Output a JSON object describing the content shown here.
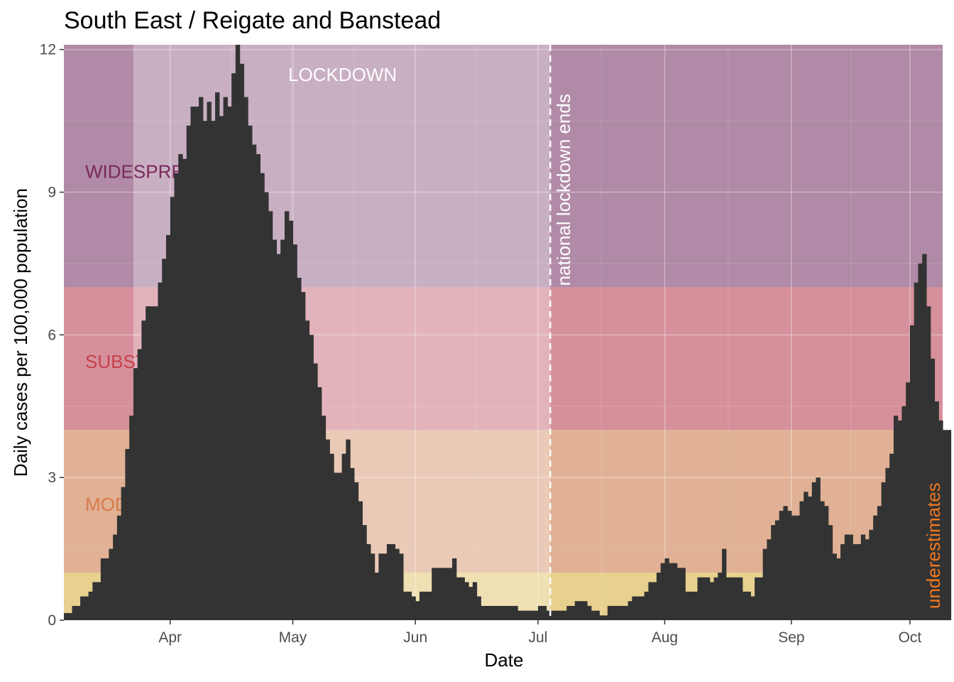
{
  "chart_data": {
    "type": "bar",
    "title": "South East / Reigate and Banstead",
    "xlabel": "Date",
    "ylabel": "Daily cases per 100,000 population",
    "ylim": [
      0,
      12.1
    ],
    "xlim_days": [
      0,
      215
    ],
    "yticks": [
      0,
      3,
      6,
      9,
      12
    ],
    "xticks": [
      {
        "label": "Apr",
        "day": 26
      },
      {
        "label": "May",
        "day": 56
      },
      {
        "label": "Jun",
        "day": 86
      },
      {
        "label": "Jul",
        "day": 116
      },
      {
        "label": "Aug",
        "day": 147
      },
      {
        "label": "Sep",
        "day": 178
      },
      {
        "label": "Oct",
        "day": 207
      }
    ],
    "bands": [
      {
        "label": "WIDESPREAD",
        "ymin": 7,
        "ymax": 12.1,
        "color": "#b08aa6",
        "text_color": "#7a2a5c"
      },
      {
        "label": "SUBSTANTIAL",
        "ymin": 4,
        "ymax": 7,
        "color": "#d6909b",
        "text_color": "#c8404f"
      },
      {
        "label": "MODERATE",
        "ymin": 1,
        "ymax": 4,
        "color": "#e0b194",
        "text_color": "#d97a4a"
      },
      {
        "label": "",
        "ymin": 0,
        "ymax": 1,
        "color": "#e8d18f",
        "text_color": ""
      }
    ],
    "lockdown": {
      "label": "LOCKDOWN",
      "start_day": 17,
      "end_day": 119
    },
    "vline": {
      "label": "national lockdown ends",
      "day": 119
    },
    "underestimates_label": "underestimates",
    "start_day": 0,
    "values": [
      0.15,
      0.15,
      0.3,
      0.3,
      0.5,
      0.5,
      0.6,
      0.8,
      0.8,
      1.3,
      1.3,
      1.5,
      1.8,
      2.2,
      2.8,
      3.6,
      4.3,
      5.3,
      5.7,
      6.3,
      6.6,
      6.6,
      6.6,
      7.1,
      7.6,
      8.1,
      8.9,
      9.4,
      9.8,
      9.7,
      10.4,
      10.8,
      10.8,
      11.0,
      10.5,
      10.9,
      10.5,
      11.1,
      10.6,
      11.0,
      10.8,
      11.5,
      12.1,
      11.7,
      11.0,
      10.4,
      10.0,
      9.8,
      9.4,
      9.0,
      8.6,
      8.0,
      7.7,
      8.0,
      8.6,
      8.4,
      7.9,
      7.2,
      6.9,
      6.3,
      6.0,
      5.4,
      4.9,
      4.3,
      3.8,
      3.5,
      3.1,
      3.1,
      3.5,
      3.8,
      3.2,
      2.9,
      2.5,
      2.0,
      1.6,
      1.4,
      1.0,
      1.4,
      1.4,
      1.6,
      1.6,
      1.5,
      1.4,
      0.6,
      0.6,
      0.5,
      0.4,
      0.6,
      0.6,
      0.6,
      1.1,
      1.1,
      1.1,
      1.1,
      1.1,
      1.3,
      0.9,
      0.9,
      0.8,
      0.7,
      0.8,
      0.5,
      0.3,
      0.3,
      0.3,
      0.3,
      0.3,
      0.3,
      0.3,
      0.3,
      0.3,
      0.2,
      0.2,
      0.2,
      0.2,
      0.2,
      0.3,
      0.3,
      0.2,
      0.2,
      0.2,
      0.2,
      0.2,
      0.3,
      0.3,
      0.4,
      0.4,
      0.4,
      0.3,
      0.2,
      0.2,
      0.1,
      0.1,
      0.3,
      0.3,
      0.3,
      0.3,
      0.3,
      0.4,
      0.5,
      0.5,
      0.5,
      0.6,
      0.8,
      0.8,
      1.0,
      1.2,
      1.3,
      1.2,
      1.2,
      1.1,
      1.1,
      0.6,
      0.6,
      0.6,
      0.9,
      0.9,
      0.9,
      0.8,
      0.9,
      1.0,
      1.5,
      0.9,
      0.9,
      0.9,
      0.9,
      0.6,
      0.6,
      0.5,
      0.9,
      0.9,
      1.5,
      1.7,
      2.0,
      2.1,
      2.3,
      2.4,
      2.3,
      2.2,
      2.2,
      2.5,
      2.7,
      2.6,
      2.9,
      3.0,
      2.5,
      2.4,
      2.0,
      1.4,
      1.3,
      1.6,
      1.8,
      1.8,
      1.6,
      1.6,
      1.8,
      1.7,
      1.9,
      2.2,
      2.4,
      2.9,
      3.2,
      3.5,
      4.3,
      4.2,
      4.5,
      5.0,
      6.2,
      7.1,
      7.5,
      7.7,
      6.6,
      5.5,
      4.6,
      4.2,
      4.0,
      4.0
    ]
  }
}
